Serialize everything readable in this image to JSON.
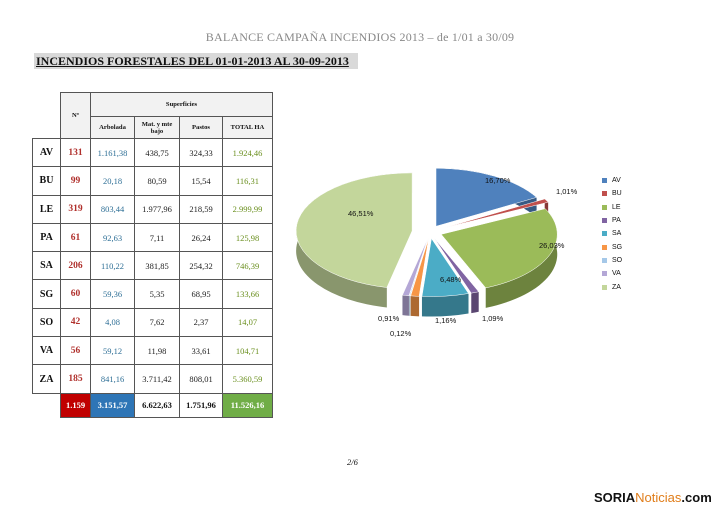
{
  "document": {
    "title": "BALANCE CAMPAÑA INCENDIOS 2013 – de 1/01 a 30/09",
    "section_title": "INCENDIOS FORESTALES DEL 01-01-2013 AL 30-09-2013",
    "page_number": "2/6"
  },
  "table": {
    "header_n": "Nº",
    "header_superficies": "Superficies",
    "header_cols": [
      "Arbolada",
      "Mat. y mte bajo",
      "Pastos",
      "TOTAL HA"
    ],
    "rows": [
      {
        "prov": "AV",
        "n": "131",
        "arbolada": "1.161,38",
        "matorral": "438,75",
        "pastos": "324,33",
        "total": "1.924,46"
      },
      {
        "prov": "BU",
        "n": "99",
        "arbolada": "20,18",
        "matorral": "80,59",
        "pastos": "15,54",
        "total": "116,31"
      },
      {
        "prov": "LE",
        "n": "319",
        "arbolada": "803,44",
        "matorral": "1.977,96",
        "pastos": "218,59",
        "total": "2.999,99"
      },
      {
        "prov": "PA",
        "n": "61",
        "arbolada": "92,63",
        "matorral": "7,11",
        "pastos": "26,24",
        "total": "125,98"
      },
      {
        "prov": "SA",
        "n": "206",
        "arbolada": "110,22",
        "matorral": "381,85",
        "pastos": "254,32",
        "total": "746,39"
      },
      {
        "prov": "SG",
        "n": "60",
        "arbolada": "59,36",
        "matorral": "5,35",
        "pastos": "68,95",
        "total": "133,66"
      },
      {
        "prov": "SO",
        "n": "42",
        "arbolada": "4,08",
        "matorral": "7,62",
        "pastos": "2,37",
        "total": "14,07"
      },
      {
        "prov": "VA",
        "n": "56",
        "arbolada": "59,12",
        "matorral": "11,98",
        "pastos": "33,61",
        "total": "104,71"
      },
      {
        "prov": "ZA",
        "n": "185",
        "arbolada": "841,16",
        "matorral": "3.711,42",
        "pastos": "808,01",
        "total": "5.360,59"
      }
    ],
    "totals": {
      "n": "1.159",
      "arbolada": "3.151,57",
      "matorral": "6.622,63",
      "pastos": "1.751,96",
      "total": "11.526,16"
    }
  },
  "chart_data": {
    "type": "pie",
    "categories": [
      "AV",
      "BU",
      "LE",
      "PA",
      "SA",
      "SG",
      "SO",
      "VA",
      "ZA"
    ],
    "values": [
      16.7,
      1.01,
      26.03,
      1.09,
      6.48,
      1.16,
      0.12,
      0.91,
      46.51
    ],
    "labels": [
      "16,70%",
      "1,01%",
      "26,03%",
      "1,09%",
      "6,48%",
      "1,16%",
      "0,12%",
      "0,91%",
      "46,51%"
    ],
    "colors": [
      "#4f81bd",
      "#c0504d",
      "#9bbb59",
      "#8064a2",
      "#4bacc6",
      "#f79646",
      "#a5c8e8",
      "#b4a7d6",
      "#c3d69b"
    ],
    "legend": "right"
  },
  "branding": {
    "part1": "SORIA",
    "part2": "Noticias",
    "suffix": ".com"
  }
}
